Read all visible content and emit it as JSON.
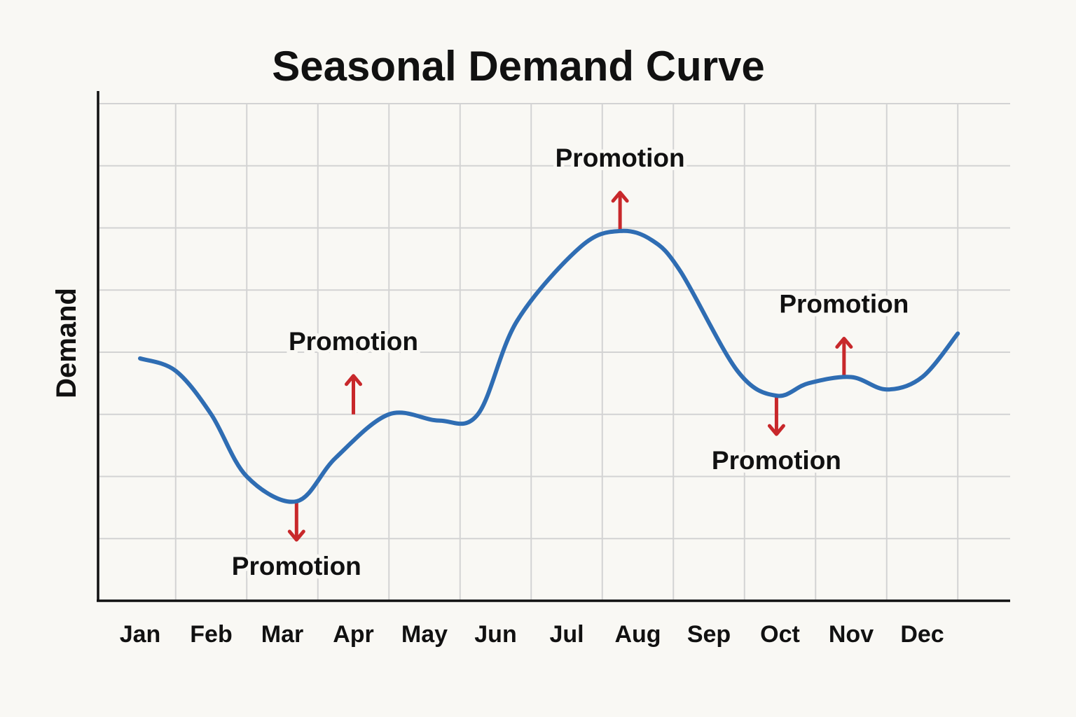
{
  "chart_data": {
    "type": "line",
    "title": "Seasonal Demand Curve",
    "xlabel": "",
    "ylabel": "Demand",
    "categories": [
      "Jan",
      "Feb",
      "Mar",
      "Apr",
      "May",
      "Jun",
      "Jul",
      "Aug",
      "Sep",
      "Oct",
      "Nov",
      "Dec"
    ],
    "ylim": [
      0,
      8
    ],
    "grid": true,
    "series": [
      {
        "x": [
          0,
          0.5,
          1,
          1.5,
          2.2,
          2.75,
          3.5,
          4.2,
          4.75,
          5.3,
          6.2,
          6.75,
          7.2,
          7.6,
          8.4,
          8.95,
          9.4,
          10.0,
          10.5,
          11.0,
          11.5
        ],
        "values": [
          3.9,
          3.7,
          3.0,
          2.0,
          1.6,
          2.3,
          3.0,
          2.9,
          3.0,
          4.5,
          5.7,
          5.95,
          5.8,
          5.3,
          3.7,
          3.3,
          3.5,
          3.6,
          3.4,
          3.6,
          4.3
        ],
        "color": "#2f6db3"
      }
    ],
    "annotations": [
      {
        "text": "Promotion",
        "x": 2.2,
        "y": 1.6,
        "direction": "down"
      },
      {
        "text": "Promotion",
        "x": 3.0,
        "y": 3.0,
        "direction": "up"
      },
      {
        "text": "Promotion",
        "x": 6.75,
        "y": 5.95,
        "direction": "up"
      },
      {
        "text": "Promotion",
        "x": 8.95,
        "y": 3.3,
        "direction": "down"
      },
      {
        "text": "Promotion",
        "x": 9.9,
        "y": 3.6,
        "direction": "up"
      }
    ],
    "arrow_color": "#c8282b"
  }
}
